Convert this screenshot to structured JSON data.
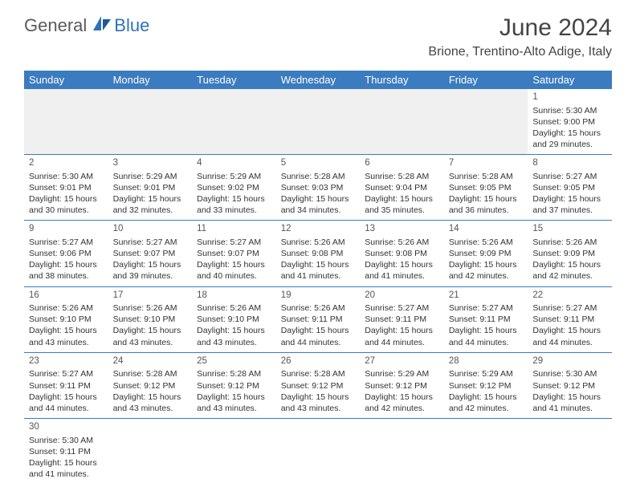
{
  "logo": {
    "part1": "General",
    "part2": "Blue"
  },
  "title": "June 2024",
  "location": "Brione, Trentino-Alto Adige, Italy",
  "colors": {
    "header_bg": "#3b7bbf",
    "header_text": "#ffffff",
    "logo_gray": "#5a5a5a",
    "logo_blue": "#2f72b8",
    "border": "#3b7bbf",
    "blank_bg": "#f0f0f0",
    "text": "#333333"
  },
  "day_headers": [
    "Sunday",
    "Monday",
    "Tuesday",
    "Wednesday",
    "Thursday",
    "Friday",
    "Saturday"
  ],
  "weeks": [
    [
      null,
      null,
      null,
      null,
      null,
      null,
      {
        "d": "1",
        "sr": "5:30 AM",
        "ss": "9:00 PM",
        "dl": "15 hours and 29 minutes."
      }
    ],
    [
      {
        "d": "2",
        "sr": "5:30 AM",
        "ss": "9:01 PM",
        "dl": "15 hours and 30 minutes."
      },
      {
        "d": "3",
        "sr": "5:29 AM",
        "ss": "9:01 PM",
        "dl": "15 hours and 32 minutes."
      },
      {
        "d": "4",
        "sr": "5:29 AM",
        "ss": "9:02 PM",
        "dl": "15 hours and 33 minutes."
      },
      {
        "d": "5",
        "sr": "5:28 AM",
        "ss": "9:03 PM",
        "dl": "15 hours and 34 minutes."
      },
      {
        "d": "6",
        "sr": "5:28 AM",
        "ss": "9:04 PM",
        "dl": "15 hours and 35 minutes."
      },
      {
        "d": "7",
        "sr": "5:28 AM",
        "ss": "9:05 PM",
        "dl": "15 hours and 36 minutes."
      },
      {
        "d": "8",
        "sr": "5:27 AM",
        "ss": "9:05 PM",
        "dl": "15 hours and 37 minutes."
      }
    ],
    [
      {
        "d": "9",
        "sr": "5:27 AM",
        "ss": "9:06 PM",
        "dl": "15 hours and 38 minutes."
      },
      {
        "d": "10",
        "sr": "5:27 AM",
        "ss": "9:07 PM",
        "dl": "15 hours and 39 minutes."
      },
      {
        "d": "11",
        "sr": "5:27 AM",
        "ss": "9:07 PM",
        "dl": "15 hours and 40 minutes."
      },
      {
        "d": "12",
        "sr": "5:26 AM",
        "ss": "9:08 PM",
        "dl": "15 hours and 41 minutes."
      },
      {
        "d": "13",
        "sr": "5:26 AM",
        "ss": "9:08 PM",
        "dl": "15 hours and 41 minutes."
      },
      {
        "d": "14",
        "sr": "5:26 AM",
        "ss": "9:09 PM",
        "dl": "15 hours and 42 minutes."
      },
      {
        "d": "15",
        "sr": "5:26 AM",
        "ss": "9:09 PM",
        "dl": "15 hours and 42 minutes."
      }
    ],
    [
      {
        "d": "16",
        "sr": "5:26 AM",
        "ss": "9:10 PM",
        "dl": "15 hours and 43 minutes."
      },
      {
        "d": "17",
        "sr": "5:26 AM",
        "ss": "9:10 PM",
        "dl": "15 hours and 43 minutes."
      },
      {
        "d": "18",
        "sr": "5:26 AM",
        "ss": "9:10 PM",
        "dl": "15 hours and 43 minutes."
      },
      {
        "d": "19",
        "sr": "5:26 AM",
        "ss": "9:11 PM",
        "dl": "15 hours and 44 minutes."
      },
      {
        "d": "20",
        "sr": "5:27 AM",
        "ss": "9:11 PM",
        "dl": "15 hours and 44 minutes."
      },
      {
        "d": "21",
        "sr": "5:27 AM",
        "ss": "9:11 PM",
        "dl": "15 hours and 44 minutes."
      },
      {
        "d": "22",
        "sr": "5:27 AM",
        "ss": "9:11 PM",
        "dl": "15 hours and 44 minutes."
      }
    ],
    [
      {
        "d": "23",
        "sr": "5:27 AM",
        "ss": "9:11 PM",
        "dl": "15 hours and 44 minutes."
      },
      {
        "d": "24",
        "sr": "5:28 AM",
        "ss": "9:12 PM",
        "dl": "15 hours and 43 minutes."
      },
      {
        "d": "25",
        "sr": "5:28 AM",
        "ss": "9:12 PM",
        "dl": "15 hours and 43 minutes."
      },
      {
        "d": "26",
        "sr": "5:28 AM",
        "ss": "9:12 PM",
        "dl": "15 hours and 43 minutes."
      },
      {
        "d": "27",
        "sr": "5:29 AM",
        "ss": "9:12 PM",
        "dl": "15 hours and 42 minutes."
      },
      {
        "d": "28",
        "sr": "5:29 AM",
        "ss": "9:12 PM",
        "dl": "15 hours and 42 minutes."
      },
      {
        "d": "29",
        "sr": "5:30 AM",
        "ss": "9:12 PM",
        "dl": "15 hours and 41 minutes."
      }
    ],
    [
      {
        "d": "30",
        "sr": "5:30 AM",
        "ss": "9:11 PM",
        "dl": "15 hours and 41 minutes."
      },
      null,
      null,
      null,
      null,
      null,
      null
    ]
  ],
  "labels": {
    "sunrise": "Sunrise:",
    "sunset": "Sunset:",
    "daylight": "Daylight:"
  }
}
